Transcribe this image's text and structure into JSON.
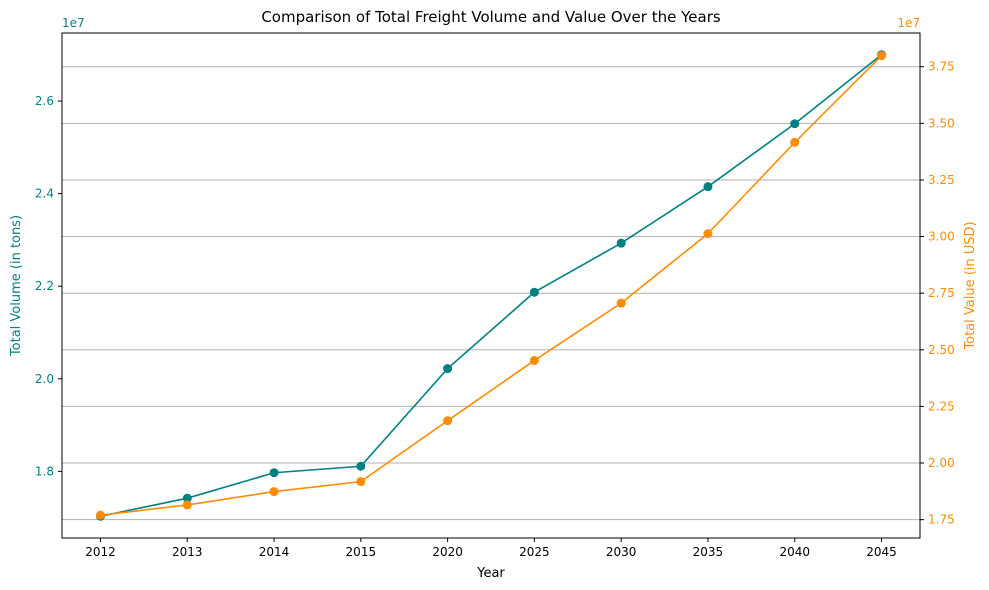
{
  "chart_data": {
    "type": "line",
    "title": "Comparison of Total Freight Volume and Value Over the Years",
    "xlabel": "Year",
    "categories": [
      "2012",
      "2013",
      "2014",
      "2015",
      "2020",
      "2025",
      "2030",
      "2035",
      "2040",
      "2045"
    ],
    "series": [
      {
        "axis": "left",
        "color": "#008080",
        "values": [
          17030000,
          17420000,
          17970000,
          18110000,
          20220000,
          21870000,
          22930000,
          24150000,
          25510000,
          27000000
        ]
      },
      {
        "axis": "right",
        "color": "#ff8c00",
        "values": [
          17700000,
          18150000,
          18740000,
          19180000,
          21870000,
          24530000,
          27060000,
          30130000,
          34160000,
          37990000
        ]
      }
    ],
    "y_left": {
      "label": "Total Volume (in tons)",
      "exponent_label": "1e7",
      "ylim": [
        16560000,
        27470000
      ],
      "tick_values": [
        18000000,
        20000000,
        22000000,
        24000000,
        26000000
      ],
      "tick_labels": [
        "1.8",
        "2.0",
        "2.2",
        "2.4",
        "2.6"
      ],
      "color": "#008080"
    },
    "y_right": {
      "label": "Total Value (in USD)",
      "exponent_label": "1e7",
      "ylim": [
        16690000,
        38990000
      ],
      "tick_values": [
        17500000,
        20000000,
        22500000,
        25000000,
        27500000,
        30000000,
        32500000,
        35000000,
        37500000
      ],
      "tick_labels": [
        "1.75",
        "2.00",
        "2.25",
        "2.50",
        "2.75",
        "3.00",
        "3.25",
        "3.50",
        "3.75"
      ],
      "color": "#ff8c00"
    },
    "grid": "horizontal"
  }
}
